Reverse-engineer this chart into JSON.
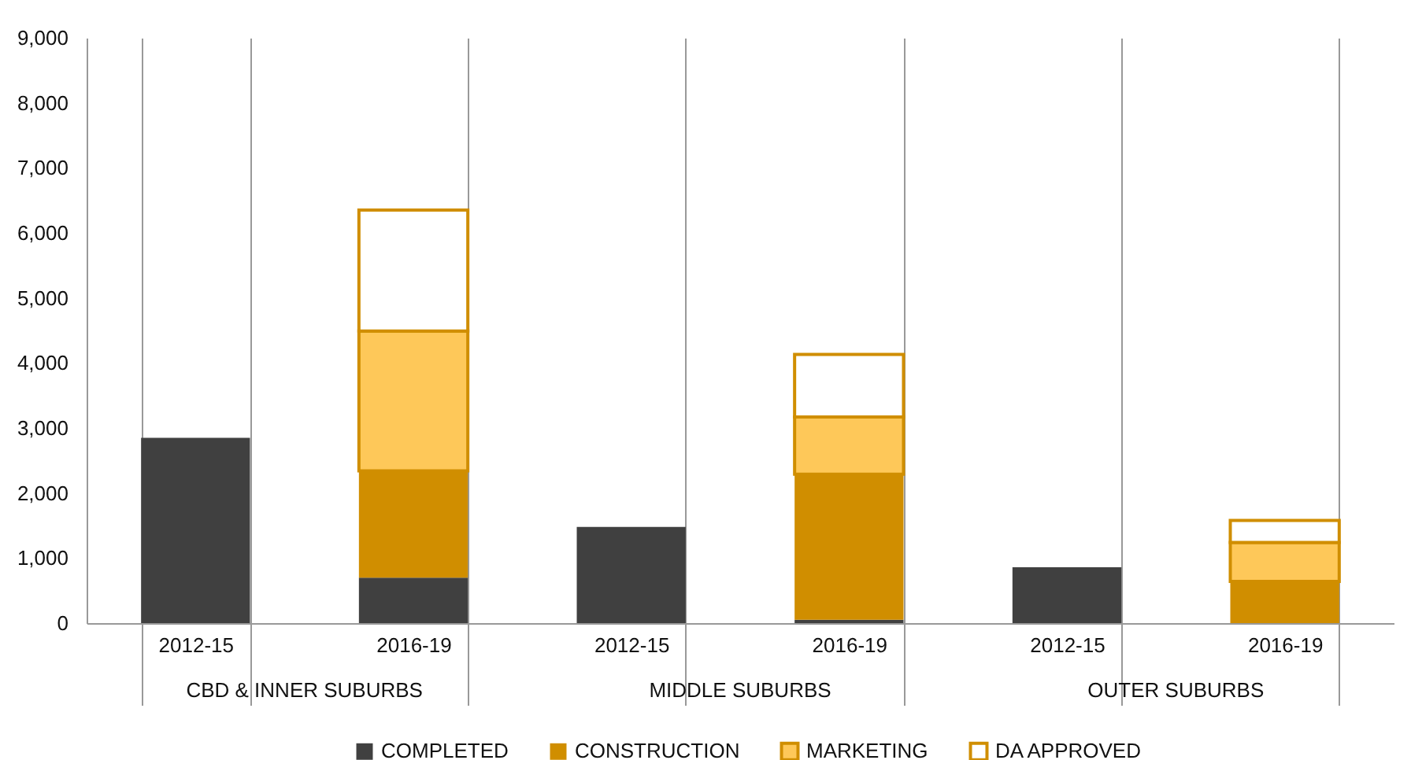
{
  "chart_data": {
    "type": "bar",
    "stacked": true,
    "categories": [
      "2012-15",
      "2016-19",
      "2012-15",
      "2016-19",
      "2012-15",
      "2016-19"
    ],
    "annotations": [
      "CBD & INNER SUBURBS",
      "MIDDLE SUBURBS",
      "OUTER SUBURBS"
    ],
    "ylim": [
      0,
      9000
    ],
    "yticks": [
      0,
      {
        "value": 1000,
        "label": "1,000"
      },
      {
        "value": 2000,
        "label": "2,000"
      },
      {
        "value": 3000,
        "label": "3,000"
      },
      {
        "value": 4000,
        "label": "4,000"
      },
      {
        "value": 5000,
        "label": "5,000"
      },
      {
        "value": 6000,
        "label": "6,000"
      },
      {
        "value": 7000,
        "label": "7,000"
      },
      {
        "value": 8000,
        "label": "8,000"
      },
      {
        "value": 9000,
        "label": "9,000"
      }
    ],
    "grid": "x",
    "legend": "bottom",
    "series": [
      {
        "name": "COMPLETED",
        "color": "#404040",
        "values": [
          2850,
          700,
          1480,
          50,
          860,
          null
        ]
      },
      {
        "name": "CONSTRUCTION",
        "color": "#d08e00",
        "values": [
          null,
          1640,
          null,
          2240,
          null,
          640
        ]
      },
      {
        "name": "MARKETING",
        "color": "#fec859",
        "values": [
          null,
          2150,
          null,
          880,
          null,
          600
        ]
      },
      {
        "name": "DA APPROVED",
        "color": "#ffffff",
        "values": [
          null,
          1860,
          null,
          960,
          null,
          340
        ]
      }
    ]
  }
}
